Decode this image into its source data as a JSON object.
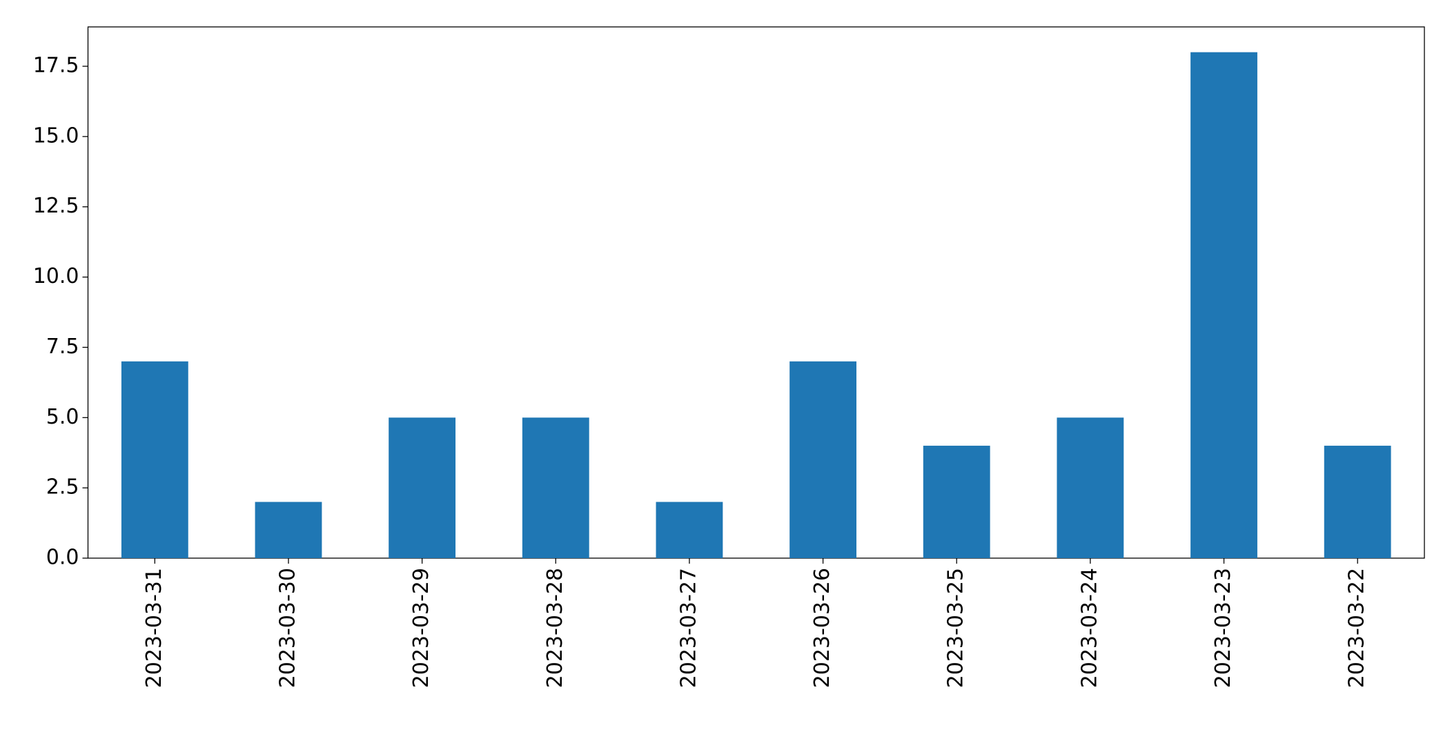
{
  "chart_data": {
    "type": "bar",
    "categories": [
      "2023-03-31",
      "2023-03-30",
      "2023-03-29",
      "2023-03-28",
      "2023-03-27",
      "2023-03-26",
      "2023-03-25",
      "2023-03-24",
      "2023-03-23",
      "2023-03-22"
    ],
    "values": [
      7,
      2,
      5,
      5,
      2,
      7,
      4,
      5,
      18,
      4
    ],
    "color": "#1f77b4",
    "ylim": [
      0,
      18.9
    ],
    "yticks": [
      {
        "value": 0,
        "label": "0.0"
      },
      {
        "value": 2.5,
        "label": "2.5"
      },
      {
        "value": 5,
        "label": "5.0"
      },
      {
        "value": 7.5,
        "label": "7.5"
      },
      {
        "value": 10,
        "label": "10.0"
      },
      {
        "value": 12.5,
        "label": "12.5"
      },
      {
        "value": 15,
        "label": "15.0"
      },
      {
        "value": 17.5,
        "label": "17.5"
      }
    ],
    "grid": false
  }
}
